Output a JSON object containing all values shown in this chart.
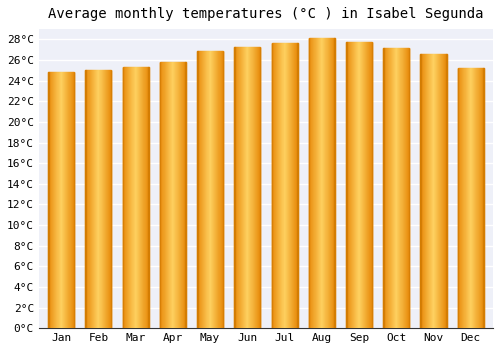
{
  "months": [
    "Jan",
    "Feb",
    "Mar",
    "Apr",
    "May",
    "Jun",
    "Jul",
    "Aug",
    "Sep",
    "Oct",
    "Nov",
    "Dec"
  ],
  "temperatures": [
    24.8,
    25.0,
    25.3,
    25.8,
    26.9,
    27.3,
    27.6,
    28.1,
    27.7,
    27.2,
    26.6,
    25.2
  ],
  "bar_color": "#FFA500",
  "bar_edge_color": "#E08000",
  "bar_gradient_light": "#FFD080",
  "title": "Average monthly temperatures (°C ) in Isabel Segunda",
  "ylim": [
    0,
    29
  ],
  "ytick_values": [
    0,
    2,
    4,
    6,
    8,
    10,
    12,
    14,
    16,
    18,
    20,
    22,
    24,
    26,
    28
  ],
  "background_color": "#FFFFFF",
  "plot_bg_color": "#EEF0F8",
  "grid_color": "#FFFFFF",
  "title_fontsize": 10,
  "tick_fontsize": 8,
  "title_font_family": "monospace",
  "bar_width": 0.7
}
